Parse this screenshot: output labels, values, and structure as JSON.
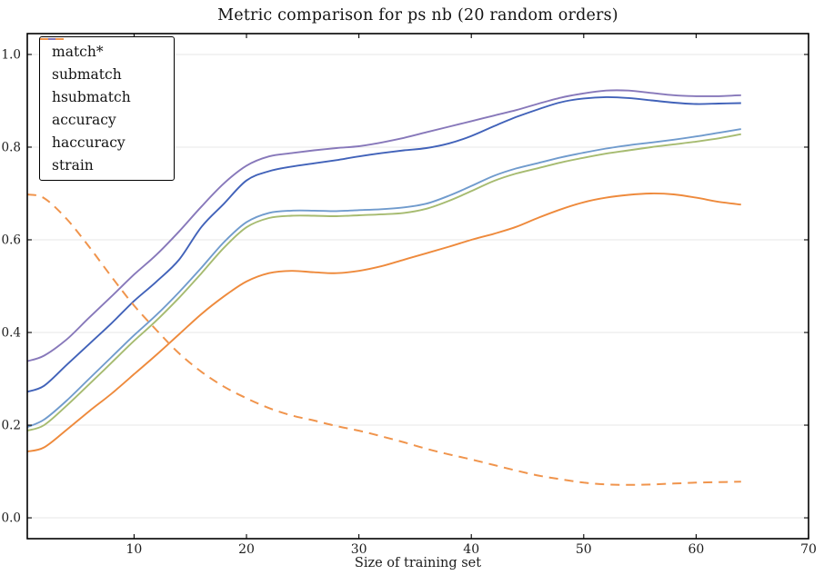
{
  "chart_data": {
    "type": "line",
    "title": "Metric comparison for ps nb (20 random orders)",
    "xlabel": "Size of training set",
    "ylabel": "",
    "xlim": [
      0.5,
      70
    ],
    "ylim": [
      -0.045,
      1.045
    ],
    "xticks": [
      10,
      20,
      30,
      40,
      50,
      60,
      70
    ],
    "xtick_labels": [
      "10",
      "20",
      "30",
      "40",
      "50",
      "60",
      "70"
    ],
    "yticks": [
      0.0,
      0.2,
      0.4,
      0.6,
      0.8,
      1.0
    ],
    "ytick_labels": [
      "0.0",
      "0.2",
      "0.4",
      "0.6",
      "0.8",
      "1.0"
    ],
    "grid": "horizontal",
    "grid_color": "#e7e7e7",
    "spine_color": "#000000",
    "legend_position": "upper left",
    "x": [
      0.5,
      2,
      4,
      6,
      8,
      10,
      12,
      14,
      16,
      18,
      20,
      22,
      24,
      26,
      28,
      30,
      32,
      34,
      36,
      38,
      40,
      42,
      44,
      46,
      48,
      50,
      52,
      54,
      56,
      58,
      60,
      62,
      64
    ],
    "series": [
      {
        "name": "match*",
        "color": "#ee8a3c",
        "style": "solid",
        "values": [
          0.143,
          0.152,
          0.19,
          0.23,
          0.268,
          0.31,
          0.352,
          0.396,
          0.44,
          0.478,
          0.51,
          0.528,
          0.533,
          0.53,
          0.528,
          0.533,
          0.543,
          0.557,
          0.571,
          0.585,
          0.6,
          0.613,
          0.628,
          0.648,
          0.666,
          0.681,
          0.691,
          0.697,
          0.7,
          0.698,
          0.691,
          0.682,
          0.676
        ]
      },
      {
        "name": "submatch",
        "color": "#a6bb70",
        "style": "solid",
        "values": [
          0.188,
          0.2,
          0.242,
          0.288,
          0.335,
          0.382,
          0.426,
          0.475,
          0.528,
          0.583,
          0.627,
          0.647,
          0.652,
          0.652,
          0.651,
          0.653,
          0.655,
          0.658,
          0.667,
          0.684,
          0.705,
          0.727,
          0.743,
          0.755,
          0.767,
          0.777,
          0.786,
          0.793,
          0.8,
          0.806,
          0.812,
          0.819,
          0.828
        ]
      },
      {
        "name": "hsubmatch",
        "color": "#709bcd",
        "style": "solid",
        "values": [
          0.196,
          0.212,
          0.253,
          0.3,
          0.347,
          0.394,
          0.438,
          0.487,
          0.54,
          0.595,
          0.638,
          0.658,
          0.663,
          0.663,
          0.662,
          0.664,
          0.666,
          0.67,
          0.678,
          0.695,
          0.716,
          0.738,
          0.754,
          0.766,
          0.778,
          0.788,
          0.797,
          0.804,
          0.81,
          0.816,
          0.823,
          0.831,
          0.839
        ]
      },
      {
        "name": "accuracy",
        "color": "#4162b9",
        "style": "solid",
        "values": [
          0.272,
          0.285,
          0.33,
          0.375,
          0.42,
          0.468,
          0.51,
          0.557,
          0.628,
          0.678,
          0.728,
          0.748,
          0.758,
          0.765,
          0.772,
          0.78,
          0.787,
          0.793,
          0.798,
          0.808,
          0.824,
          0.845,
          0.865,
          0.882,
          0.897,
          0.905,
          0.908,
          0.906,
          0.901,
          0.896,
          0.893,
          0.894,
          0.895
        ]
      },
      {
        "name": "haccuracy",
        "color": "#8778ba",
        "style": "solid",
        "values": [
          0.338,
          0.35,
          0.385,
          0.432,
          0.478,
          0.525,
          0.568,
          0.618,
          0.672,
          0.722,
          0.76,
          0.78,
          0.787,
          0.793,
          0.798,
          0.802,
          0.81,
          0.82,
          0.832,
          0.844,
          0.856,
          0.868,
          0.88,
          0.894,
          0.907,
          0.916,
          0.922,
          0.922,
          0.917,
          0.912,
          0.91,
          0.91,
          0.912
        ]
      },
      {
        "name": "strain",
        "color": "#f0944c",
        "style": "dashed",
        "values": [
          0.698,
          0.69,
          0.645,
          0.585,
          0.52,
          0.458,
          0.405,
          0.355,
          0.315,
          0.283,
          0.258,
          0.237,
          0.221,
          0.21,
          0.198,
          0.188,
          0.176,
          0.163,
          0.149,
          0.137,
          0.126,
          0.114,
          0.102,
          0.091,
          0.083,
          0.076,
          0.072,
          0.071,
          0.072,
          0.074,
          0.076,
          0.077,
          0.078
        ]
      }
    ]
  }
}
